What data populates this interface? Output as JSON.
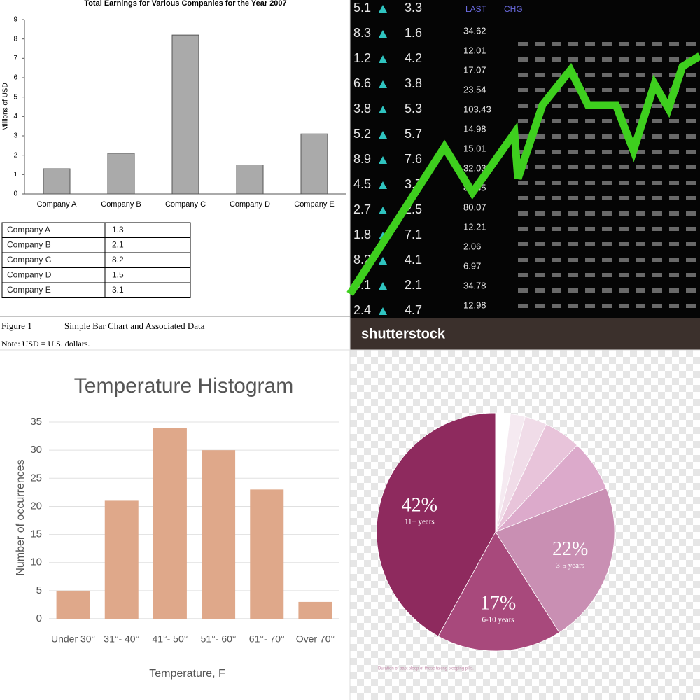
{
  "chart_data": [
    {
      "type": "bar",
      "title": "Total Earnings for Various Companies for the Year 2007",
      "ylabel": "Millions of USD",
      "categories": [
        "Company A",
        "Company B",
        "Company C",
        "Company D",
        "Company E"
      ],
      "values": [
        1.3,
        2.1,
        8.2,
        1.5,
        3.1
      ],
      "color": "#aaaaaa",
      "ylim": [
        0,
        9
      ],
      "yticks": [
        0,
        1,
        2,
        3,
        4,
        5,
        6,
        7,
        8,
        9
      ],
      "grid": false
    },
    {
      "type": "bar",
      "title": "Temperature Histogram",
      "xlabel": "Temperature, F",
      "ylabel": "Number of occurrences",
      "categories": [
        "Under 30°",
        "31°- 40°",
        "41°- 50°",
        "51°- 60°",
        "61°- 70°",
        "Over 70°"
      ],
      "values": [
        5,
        21,
        34,
        30,
        23,
        3
      ],
      "color": "#dfa88a",
      "ylim": [
        0,
        36
      ],
      "yticks": [
        0,
        5,
        10,
        15,
        20,
        25,
        30,
        35
      ],
      "grid": true
    },
    {
      "type": "pie",
      "title": "Duration of past sleep of those taking sleeping pills.",
      "categories": [
        "11+ years",
        "6-10 years",
        "3-5 years",
        null,
        null,
        null,
        null,
        null
      ],
      "values": [
        42,
        17,
        22,
        7,
        5,
        3,
        2,
        2
      ],
      "value_labels": [
        "42%",
        "17%",
        "22%",
        null,
        null,
        null,
        null,
        null
      ],
      "colors": [
        "#8e2a5e",
        "#a8497c",
        "#c98fb3",
        "#dcaacb",
        "#e8c4da",
        "#f0dce8",
        "#f5eaf1",
        "#ffffff"
      ]
    }
  ],
  "table": {
    "rows": [
      [
        "Company A",
        "1.3"
      ],
      [
        "Company B",
        "2.1"
      ],
      [
        "Company C",
        "8.2"
      ],
      [
        "Company D",
        "1.5"
      ],
      [
        "Company E",
        "3.1"
      ]
    ]
  },
  "figure": {
    "label": "Figure 1",
    "caption": "Simple Bar Chart and Associated Data",
    "note": "Note: USD = U.S. dollars."
  },
  "photo": {
    "brand": "shutterstock",
    "headers": [
      "LAST",
      "CHG"
    ],
    "ticker_columns": [
      [
        "5.1",
        "8.3",
        "1.2",
        "6.6",
        "3.8",
        "5.2",
        "8.9",
        "4.5",
        "2.7",
        "1.8",
        "8.2",
        "9.1",
        "2.4"
      ],
      [
        "3.3",
        "1.6",
        "4.2",
        "3.8",
        "5.3",
        "5.7",
        "7.6",
        "3.7",
        "2.5",
        "7.1",
        "4.1",
        "2.1",
        "4.7"
      ],
      [
        "34.62",
        "12.01",
        "17.07",
        "23.54",
        "103.43",
        "14.98",
        "15.01",
        "32.03",
        "84.45",
        "80.07",
        "12.21",
        "2.06",
        "6.97",
        "34.78",
        "12.98"
      ]
    ]
  }
}
